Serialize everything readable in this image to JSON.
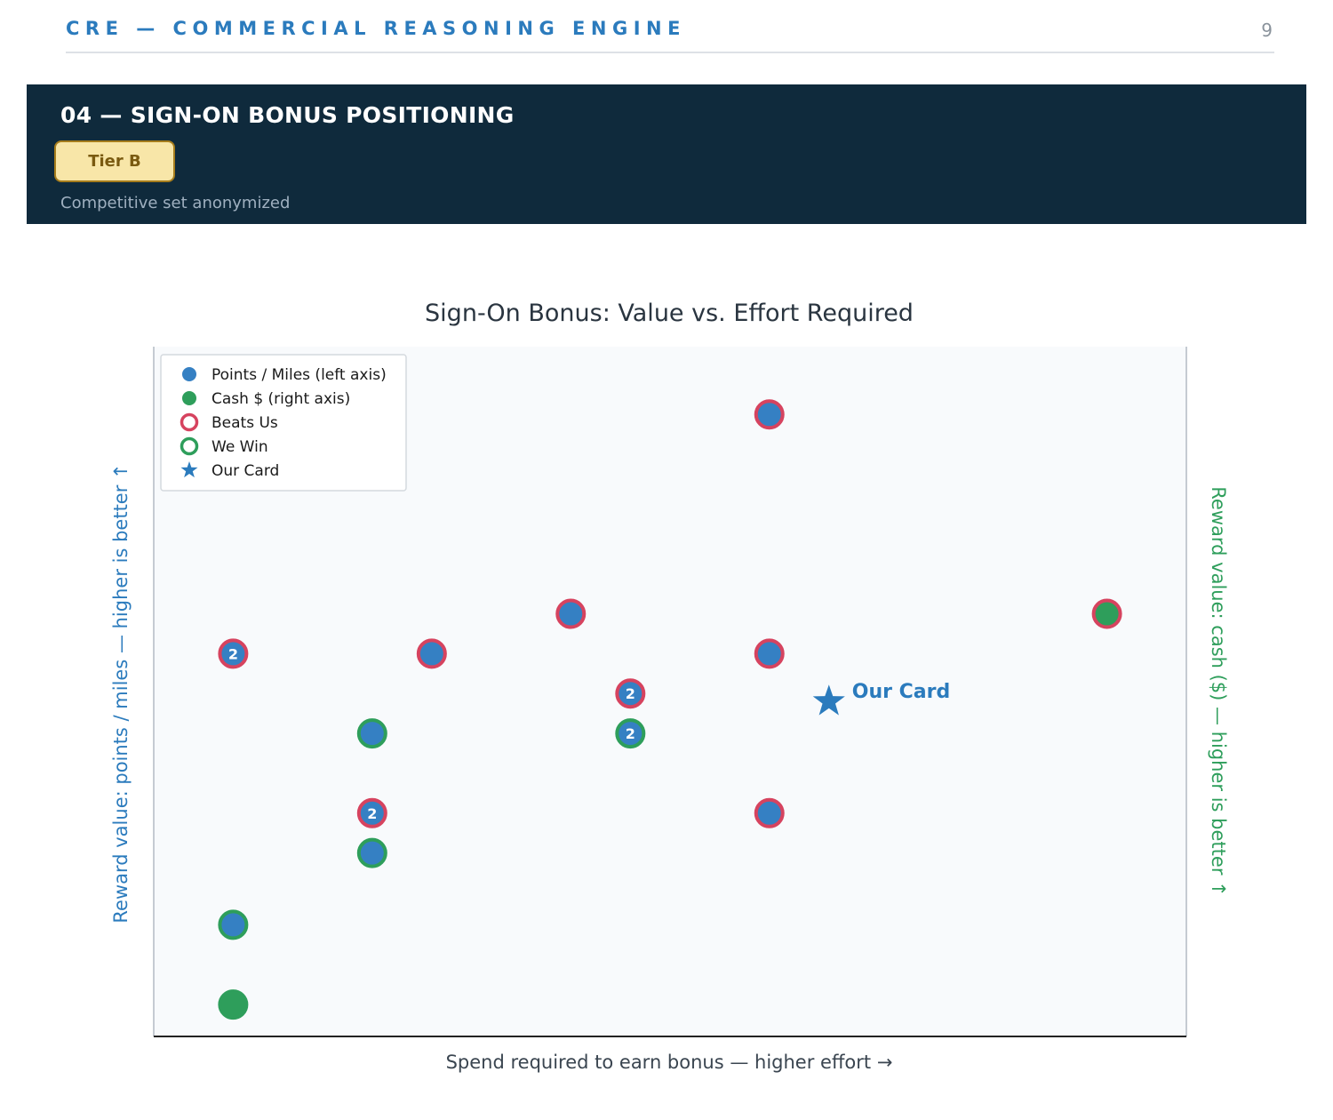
{
  "header": {
    "brand": "CRE — COMMERCIAL REASONING ENGINE",
    "page_number": "9"
  },
  "banner": {
    "title": "04 — SIGN-ON BONUS POSITIONING",
    "tier": "Tier B",
    "subtitle": "Competitive set anonymized"
  },
  "colors": {
    "points": "#3580c3",
    "cash": "#2e9e5b",
    "beats_us": "#d6435f",
    "we_win": "#2e9e5b",
    "our_card": "#2b7bbd",
    "banner_bg": "#0f2a3c"
  },
  "chart_data": {
    "type": "scatter",
    "title": "Sign-On Bonus: Value vs. Effort Required",
    "xlabel": "Spend required to earn bonus  —  higher effort →",
    "ylabel_left": "Reward value: points / miles  —  higher is better ↑",
    "ylabel_right": "Reward value: cash ($)  —  higher is better ↑",
    "axis_ticks_shown": false,
    "xlim": [
      0,
      13
    ],
    "ylim": [
      0,
      17.3
    ],
    "legend_position": "top-left",
    "legend": [
      {
        "label": "Points / Miles (left axis)",
        "marker": "filled-blue"
      },
      {
        "label": "Cash $ (right axis)",
        "marker": "filled-green"
      },
      {
        "label": "Beats Us",
        "marker": "ring-red"
      },
      {
        "label": "We Win",
        "marker": "ring-green"
      },
      {
        "label": "Our Card",
        "marker": "star"
      }
    ],
    "points": [
      {
        "x": 1.0,
        "y": 9.6,
        "kind": "points",
        "outcome": "beats_us",
        "count": "2"
      },
      {
        "x": 1.0,
        "y": 2.8,
        "kind": "points",
        "outcome": "we_win",
        "count": ""
      },
      {
        "x": 1.0,
        "y": 0.8,
        "kind": "cash",
        "outcome": "we_win",
        "count": ""
      },
      {
        "x": 2.75,
        "y": 7.6,
        "kind": "points",
        "outcome": "we_win",
        "count": ""
      },
      {
        "x": 2.75,
        "y": 5.6,
        "kind": "points",
        "outcome": "beats_us",
        "count": "2"
      },
      {
        "x": 2.75,
        "y": 4.6,
        "kind": "points",
        "outcome": "we_win",
        "count": ""
      },
      {
        "x": 3.5,
        "y": 9.6,
        "kind": "points",
        "outcome": "beats_us",
        "count": ""
      },
      {
        "x": 5.25,
        "y": 10.6,
        "kind": "points",
        "outcome": "beats_us",
        "count": ""
      },
      {
        "x": 6.0,
        "y": 8.6,
        "kind": "points",
        "outcome": "beats_us",
        "count": "2"
      },
      {
        "x": 6.0,
        "y": 7.6,
        "kind": "points",
        "outcome": "we_win",
        "count": "2"
      },
      {
        "x": 7.75,
        "y": 15.6,
        "kind": "points",
        "outcome": "beats_us",
        "count": ""
      },
      {
        "x": 7.75,
        "y": 9.6,
        "kind": "points",
        "outcome": "beats_us",
        "count": ""
      },
      {
        "x": 7.75,
        "y": 5.6,
        "kind": "points",
        "outcome": "beats_us",
        "count": ""
      },
      {
        "x": 12.0,
        "y": 10.6,
        "kind": "cash",
        "outcome": "beats_us",
        "count": ""
      }
    ],
    "our_card": {
      "x": 8.5,
      "y": 8.4,
      "label": "Our Card"
    }
  }
}
